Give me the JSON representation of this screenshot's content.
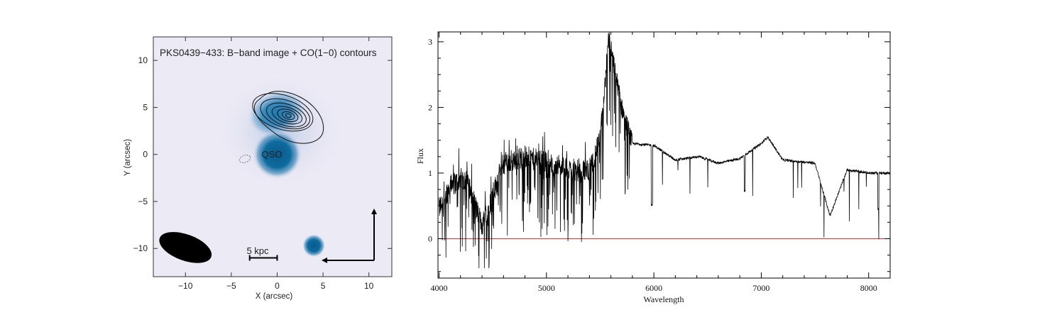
{
  "chart_data": [
    {
      "type": "image",
      "title": "PKS0439−433: B−band image + CO(1−0) contours",
      "xlabel": "X (arcsec)",
      "ylabel": "Y (arcsec)",
      "xlim": [
        -13.5,
        12.5
      ],
      "ylim": [
        -13,
        12.5
      ],
      "xticks": [
        -10,
        -5,
        0,
        5,
        10
      ],
      "yticks": [
        10,
        5,
        0,
        -5,
        -10
      ],
      "xtick_labels": [
        "−10",
        "−5",
        "0",
        "5",
        "10"
      ],
      "ytick_labels": [
        "10",
        "5",
        "0",
        "−5",
        "−10"
      ],
      "qso_label": "QSO",
      "qso_position": [
        0,
        0
      ],
      "companion_position": [
        4,
        -9.7
      ],
      "co_peak_position": [
        1,
        4.2
      ],
      "beam": {
        "x": -10,
        "y": -9.9,
        "major": 4.6,
        "minor": 2.2,
        "pa_deg": 20
      },
      "scalebar_label": "5 kpc",
      "scalebar_x": [
        -3,
        0
      ],
      "scalebar_y": -11
    },
    {
      "type": "line",
      "xlabel": "Wavelength",
      "ylabel": "Flux",
      "xlim": [
        3990,
        8200
      ],
      "ylim": [
        -0.6,
        3.15
      ],
      "xticks": [
        4000,
        5000,
        6000,
        7000,
        8000
      ],
      "yticks": [
        0,
        1,
        2,
        3
      ],
      "zero_line_color": "#e03030",
      "series_color": "#000000",
      "features": [
        {
          "name": "emission peak",
          "x": 5580,
          "y": 3.08
        },
        {
          "name": "emission bump",
          "x": 6420,
          "y": 1.25
        },
        {
          "name": "emission bump",
          "x": 7060,
          "y": 1.55
        },
        {
          "name": "absorption trough",
          "x": 7640,
          "y": 0.35
        }
      ],
      "continuum": {
        "x": [
          4000,
          4100,
          4250,
          4400,
          4600,
          4800,
          5000,
          5200,
          5400,
          5500,
          5580,
          5700,
          5800,
          6000,
          6200,
          6420,
          6600,
          6800,
          7000,
          7060,
          7200,
          7500,
          7640,
          7800,
          8000,
          8200
        ],
        "y": [
          0.45,
          0.8,
          0.95,
          0.2,
          1.15,
          1.25,
          1.15,
          1.05,
          1.05,
          1.5,
          3.08,
          2.0,
          1.45,
          1.42,
          1.2,
          1.25,
          1.15,
          1.22,
          1.45,
          1.55,
          1.2,
          1.15,
          0.35,
          1.05,
          1.0,
          1.0
        ]
      }
    }
  ]
}
